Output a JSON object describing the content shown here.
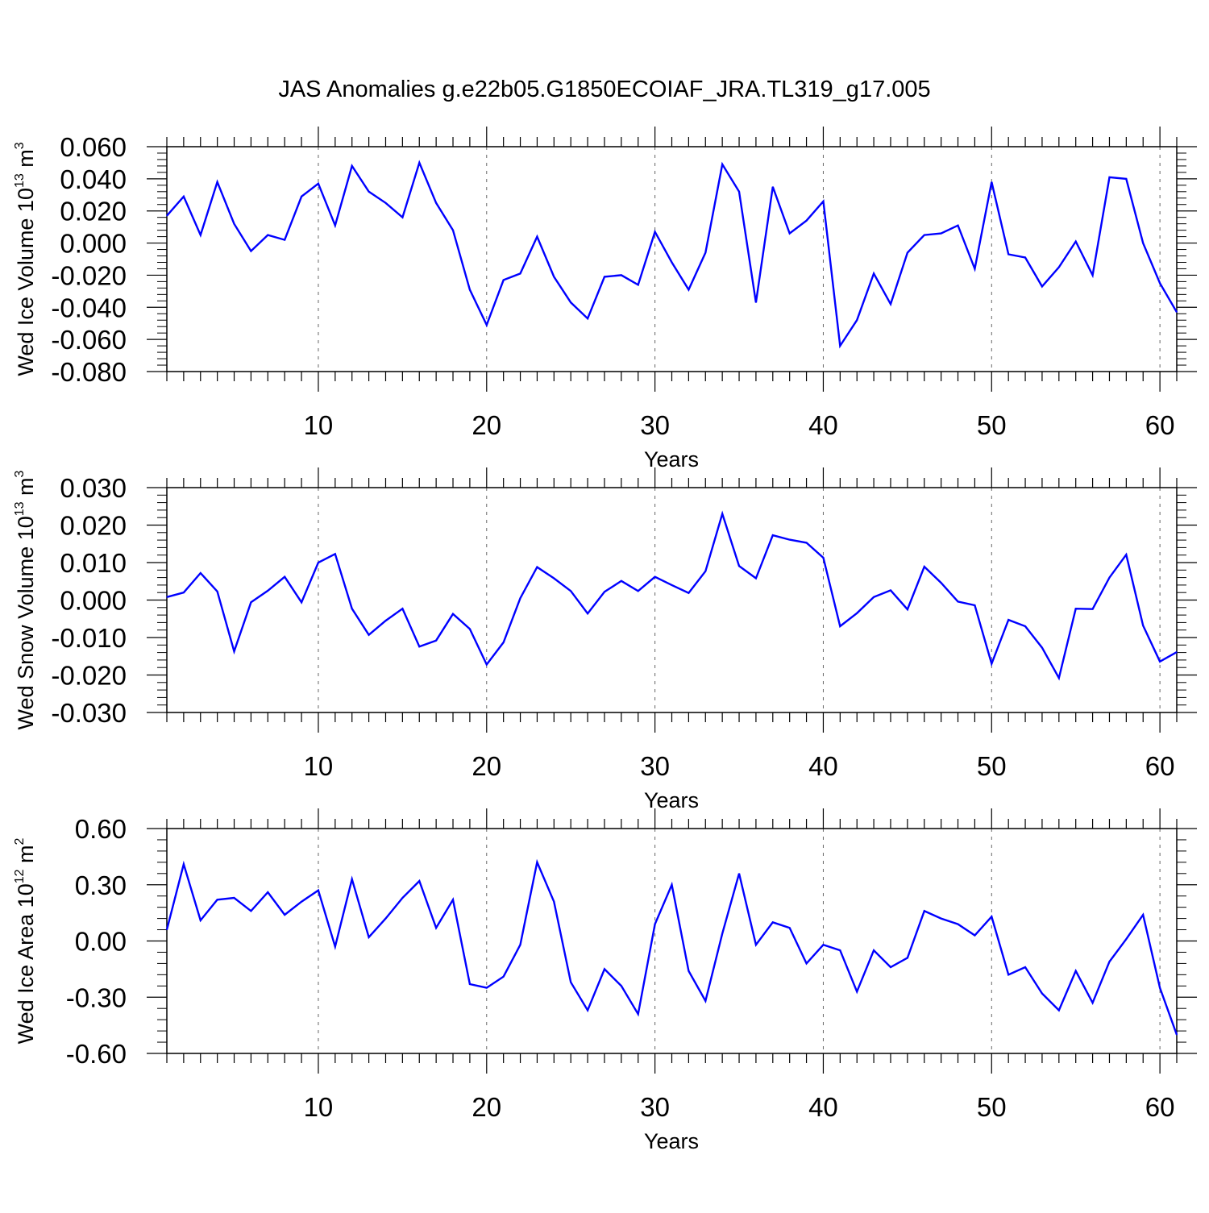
{
  "title": "JAS Anomalies g.e22b05.G1850ECOIAF_JRA.TL319_g17.005",
  "colors": {
    "series": "#0000ff",
    "axis": "#000000",
    "grid": "#666666"
  },
  "chart_data": [
    {
      "type": "line",
      "ylabel": {
        "main": "Wed Ice Volume 10",
        "sup": "13",
        "unit": " m",
        "unit_sup": "3"
      },
      "xlabel": "Years",
      "xlim": [
        1,
        61
      ],
      "ylim": [
        -0.08,
        0.06
      ],
      "yticks": [
        -0.08,
        -0.06,
        -0.04,
        -0.02,
        0.0,
        0.02,
        0.04,
        0.06
      ],
      "ytick_labels": [
        "-0.080",
        "-0.060",
        "-0.040",
        "-0.020",
        "0.000",
        "0.020",
        "0.040",
        "0.060"
      ],
      "xticks": [
        10,
        20,
        30,
        40,
        50,
        60
      ],
      "xtick_labels": [
        "10",
        "20",
        "30",
        "40",
        "50",
        "60"
      ],
      "grid": "vertical dashed at major x ticks",
      "series": [
        {
          "values": [
            0.017,
            0.029,
            0.005,
            0.038,
            0.012,
            -0.005,
            0.005,
            0.002,
            0.029,
            0.037,
            0.011,
            0.048,
            0.032,
            0.025,
            0.016,
            0.05,
            0.025,
            0.008,
            -0.029,
            -0.051,
            -0.023,
            -0.019,
            0.004,
            -0.021,
            -0.037,
            -0.047,
            -0.021,
            -0.02,
            -0.026,
            0.007,
            -0.012,
            -0.029,
            -0.006,
            0.049,
            0.032,
            -0.037,
            0.035,
            0.006,
            0.014,
            0.026,
            -0.064,
            -0.048,
            -0.019,
            -0.038,
            -0.006,
            0.005,
            0.006,
            0.011,
            -0.016,
            0.038,
            -0.007,
            -0.009,
            -0.027,
            -0.015,
            0.001,
            -0.02,
            0.041,
            0.04,
            0.0,
            -0.025,
            -0.043
          ]
        }
      ]
    },
    {
      "type": "line",
      "ylabel": {
        "main": "Wed Snow Volume 10",
        "sup": "13",
        "unit": " m",
        "unit_sup": "3"
      },
      "xlabel": "Years",
      "xlim": [
        1,
        61
      ],
      "ylim": [
        -0.03,
        0.03
      ],
      "yticks": [
        -0.03,
        -0.02,
        -0.01,
        0.0,
        0.01,
        0.02,
        0.03
      ],
      "ytick_labels": [
        "-0.030",
        "-0.020",
        "-0.010",
        "0.000",
        "0.010",
        "0.020",
        "0.030"
      ],
      "xticks": [
        10,
        20,
        30,
        40,
        50,
        60
      ],
      "xtick_labels": [
        "10",
        "20",
        "30",
        "40",
        "50",
        "60"
      ],
      "grid": "vertical dashed at major x ticks",
      "series": [
        {
          "values": [
            0.0008,
            0.002,
            0.0072,
            0.0023,
            -0.0137,
            -0.0006,
            0.0025,
            0.0062,
            -0.0006,
            0.01,
            0.0123,
            -0.0023,
            -0.0093,
            -0.0055,
            -0.0023,
            -0.0124,
            -0.0108,
            -0.0037,
            -0.0077,
            -0.0172,
            -0.0113,
            0.0005,
            0.0088,
            0.0058,
            0.0024,
            -0.0036,
            0.0022,
            0.0051,
            0.0024,
            0.0062,
            0.004,
            0.0019,
            0.0077,
            0.023,
            0.0091,
            0.0058,
            0.0173,
            0.0161,
            0.0153,
            0.0113,
            -0.007,
            -0.0035,
            0.0008,
            0.0026,
            -0.0025,
            0.0089,
            0.0046,
            -0.0004,
            -0.0014,
            -0.017,
            -0.0053,
            -0.007,
            -0.0127,
            -0.0208,
            -0.0023,
            -0.0024,
            0.006,
            0.0121,
            -0.0068,
            -0.0164,
            -0.0139
          ]
        }
      ]
    },
    {
      "type": "line",
      "ylabel": {
        "main": "Wed Ice Area 10",
        "sup": "12",
        "unit": " m",
        "unit_sup": "2"
      },
      "xlabel": "Years",
      "xlim": [
        1,
        61
      ],
      "ylim": [
        -0.6,
        0.6
      ],
      "yticks": [
        -0.6,
        -0.3,
        0.0,
        0.3,
        0.6
      ],
      "ytick_labels": [
        "-0.60",
        "-0.30",
        "0.00",
        "0.30",
        "0.60"
      ],
      "xticks": [
        10,
        20,
        30,
        40,
        50,
        60
      ],
      "xtick_labels": [
        "10",
        "20",
        "30",
        "40",
        "50",
        "60"
      ],
      "grid": "vertical dashed at major x ticks",
      "series": [
        {
          "values": [
            0.06,
            0.41,
            0.11,
            0.22,
            0.23,
            0.16,
            0.26,
            0.14,
            0.21,
            0.27,
            -0.03,
            0.33,
            0.02,
            0.12,
            0.23,
            0.32,
            0.07,
            0.22,
            -0.23,
            -0.25,
            -0.19,
            -0.02,
            0.42,
            0.21,
            -0.22,
            -0.37,
            -0.15,
            -0.24,
            -0.39,
            0.09,
            0.3,
            -0.16,
            -0.32,
            0.04,
            0.36,
            -0.02,
            0.1,
            0.07,
            -0.12,
            -0.02,
            -0.05,
            -0.27,
            -0.05,
            -0.14,
            -0.09,
            0.16,
            0.12,
            0.09,
            0.03,
            0.13,
            -0.18,
            -0.14,
            -0.28,
            -0.37,
            -0.16,
            -0.33,
            -0.11,
            0.01,
            0.14,
            -0.25,
            -0.5
          ]
        }
      ]
    }
  ]
}
